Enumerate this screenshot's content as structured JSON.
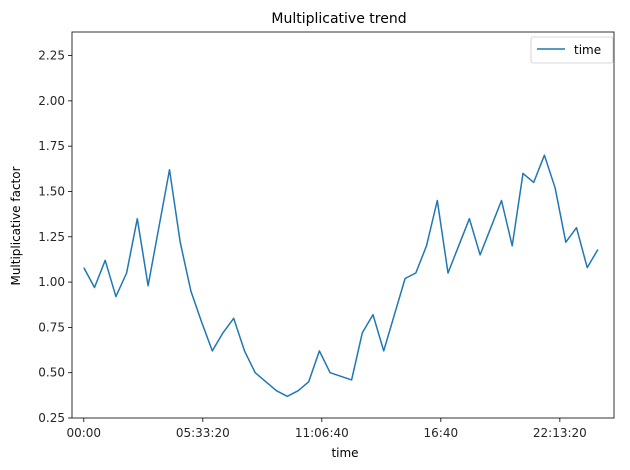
{
  "chart_data": {
    "type": "line",
    "title": "Multiplicative trend",
    "xlabel": "time",
    "ylabel": "Multiplicative factor",
    "xlim": [
      -1980,
      89100
    ],
    "ylim": [
      0.25,
      2.38
    ],
    "grid": false,
    "legend_position": "top-right",
    "x_unit": "seconds of day",
    "x_tick_values": [
      0,
      20000,
      40000,
      60000,
      80000
    ],
    "x_tick_labels": [
      "00:00",
      "05:33:20",
      "11:06:40",
      "16:40",
      "22:13:20"
    ],
    "y_tick_values": [
      0.25,
      0.5,
      0.75,
      1.0,
      1.25,
      1.5,
      1.75,
      2.0,
      2.25
    ],
    "y_tick_labels": [
      "0.25",
      "0.50",
      "0.75",
      "1.00",
      "1.25",
      "1.50",
      "1.75",
      "2.00",
      "2.25"
    ],
    "series": [
      {
        "name": "time",
        "color": "#1f77b4",
        "x": [
          0,
          1800,
          3600,
          5400,
          7200,
          9000,
          10800,
          12600,
          14400,
          16200,
          18000,
          19800,
          21600,
          23400,
          25200,
          27000,
          28800,
          30600,
          32400,
          34200,
          36000,
          37800,
          39600,
          41400,
          43200,
          45000,
          46800,
          48600,
          50400,
          52200,
          54000,
          55800,
          57600,
          59400,
          61200,
          63000,
          64800,
          66600,
          68400,
          70200,
          72000,
          73800,
          75600,
          77400,
          79200,
          81000,
          82800,
          84600,
          86400
        ],
        "y": [
          1.08,
          0.97,
          1.12,
          0.92,
          1.05,
          1.35,
          0.98,
          1.3,
          1.62,
          1.22,
          0.95,
          0.78,
          0.62,
          0.72,
          0.8,
          0.62,
          0.5,
          0.45,
          0.4,
          0.37,
          0.4,
          0.45,
          0.62,
          0.5,
          0.48,
          0.46,
          0.72,
          0.82,
          0.62,
          0.82,
          1.02,
          1.05,
          1.2,
          1.45,
          1.05,
          1.2,
          1.35,
          1.15,
          1.3,
          1.45,
          1.2,
          1.6,
          1.55,
          1.7,
          1.52,
          1.22,
          1.3,
          1.08,
          1.18
        ]
      }
    ]
  }
}
